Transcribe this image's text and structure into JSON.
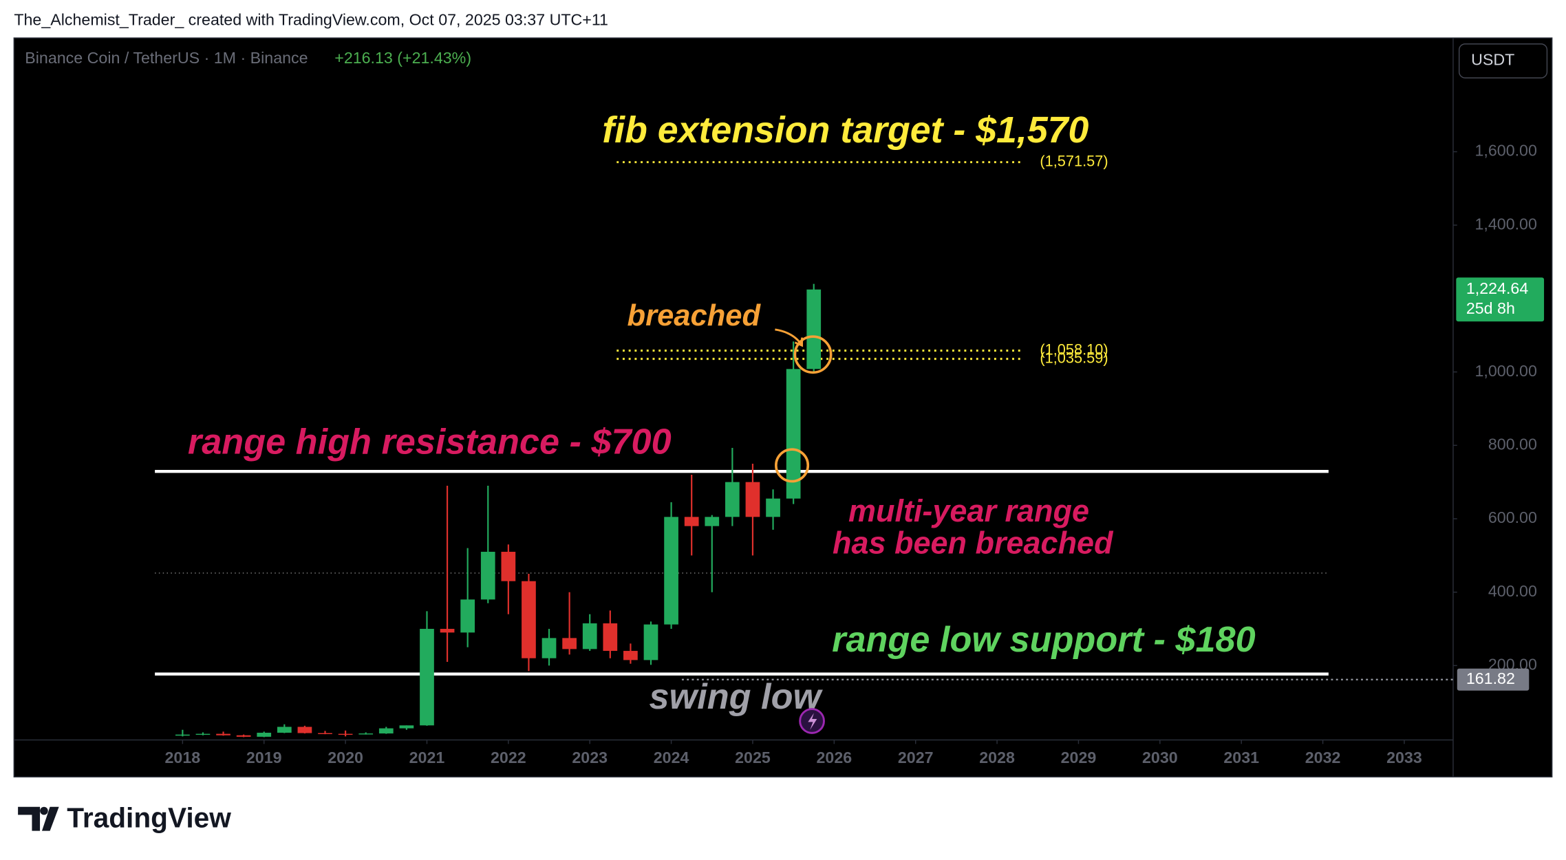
{
  "header": {
    "caption": "The_Alchemist_Trader_ created with TradingView.com, Oct 07, 2025 03:37 UTC+11"
  },
  "footer": {
    "brand": "TradingView"
  },
  "chart_data": {
    "type": "candlestick",
    "symbol": "Binance Coin / TetherUS · 1M · Binance",
    "change": "+216.13 (+21.43%)",
    "currency": "USDT",
    "colors": {
      "up": "#22ab5d",
      "down": "#e0302c"
    },
    "xlim": [
      2015.93,
      2033.6
    ],
    "xticks": [
      2018,
      2019,
      2020,
      2021,
      2022,
      2023,
      2024,
      2025,
      2026,
      2027,
      2028,
      2029,
      2030,
      2031,
      2032,
      2033
    ],
    "ylim": [
      0,
      1910
    ],
    "yticks": [
      {
        "value": 200,
        "label": "200.00"
      },
      {
        "value": 400,
        "label": "400.00"
      },
      {
        "value": 600,
        "label": "600.00"
      },
      {
        "value": 800,
        "label": "800.00"
      },
      {
        "value": 1000,
        "label": "1,000.00"
      },
      {
        "value": 1400,
        "label": "1,400.00"
      },
      {
        "value": 1600,
        "label": "1,600.00"
      }
    ],
    "x": [
      2018.0,
      2018.25,
      2018.5,
      2018.75,
      2019.0,
      2019.25,
      2019.5,
      2019.75,
      2020.0,
      2020.25,
      2020.5,
      2020.75,
      2021.0,
      2021.25,
      2021.5,
      2021.75,
      2022.0,
      2022.25,
      2022.5,
      2022.75,
      2023.0,
      2023.25,
      2023.5,
      2023.75,
      2024.0,
      2024.25,
      2024.5,
      2024.75,
      2025.0,
      2025.25,
      2025.5,
      2025.75
    ],
    "open": [
      9,
      12,
      14,
      10,
      6,
      17,
      33,
      16,
      14,
      13,
      15,
      29,
      37,
      300,
      290,
      380,
      510,
      430,
      220,
      275,
      245,
      315,
      240,
      215,
      312,
      605,
      580,
      605,
      700,
      605,
      655,
      1008
    ],
    "high": [
      25,
      18,
      20,
      12,
      20,
      40,
      36,
      22,
      23,
      18,
      33,
      37,
      348,
      690,
      520,
      690,
      530,
      450,
      300,
      400,
      340,
      350,
      260,
      320,
      645,
      720,
      610,
      793,
      750,
      680,
      1083,
      1240
    ],
    "low": [
      7,
      10,
      9,
      5,
      5,
      16,
      15,
      13,
      7,
      12,
      14,
      25,
      36,
      210,
      250,
      370,
      340,
      185,
      200,
      230,
      240,
      220,
      205,
      202,
      300,
      500,
      400,
      580,
      500,
      570,
      640,
      1000
    ],
    "close": [
      12,
      14,
      10,
      6,
      17,
      33,
      16,
      14,
      13,
      15,
      29,
      37,
      300,
      290,
      380,
      510,
      430,
      220,
      275,
      245,
      315,
      240,
      215,
      312,
      605,
      580,
      605,
      700,
      605,
      655,
      1008,
      1224.64
    ],
    "levels": [
      {
        "value": 729,
        "xrange": [
          2017.66,
          2032.07
        ],
        "style": "solid"
      },
      {
        "value": 177,
        "xrange": [
          2017.66,
          2032.07
        ],
        "style": "solid"
      },
      {
        "value": 452,
        "xrange": [
          2017.66,
          2032.07
        ],
        "style": "dotted"
      }
    ],
    "fib_levels": {
      "values": [
        1571.57,
        1058.1,
        1035.59
      ],
      "value_labels": [
        "(1,571.57)",
        "(1,058.10)",
        "(1,035.59)"
      ],
      "xrange": [
        2023.33,
        2028.33
      ]
    },
    "swing_low": {
      "value": 161.82,
      "label": "161.82",
      "xstart": 2024.13
    },
    "last_price": {
      "value": 1224.64,
      "label": "1,224.64",
      "countdown": "25d 8h"
    },
    "annotations": [
      "fib extension target - $1,570",
      "breached",
      "range high resistance - $700",
      "multi-year range",
      "has been breached",
      "range low support - $180",
      "swing low"
    ]
  }
}
